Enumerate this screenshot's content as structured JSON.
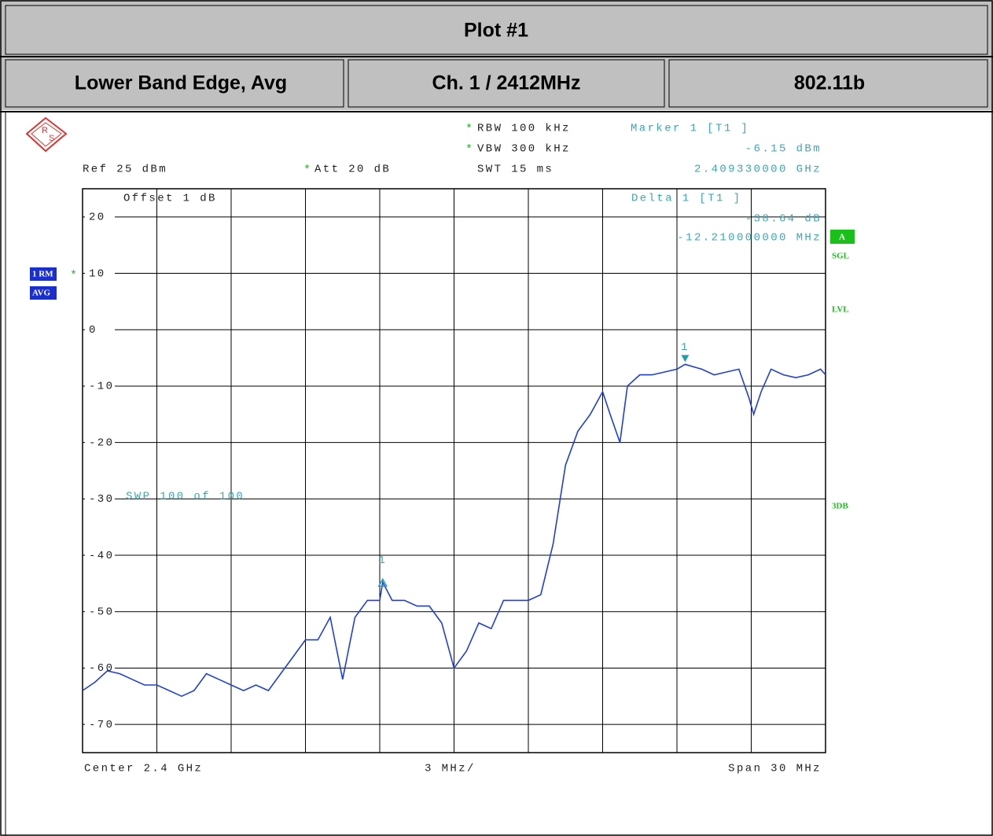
{
  "header": {
    "title": "Plot #1",
    "cells": [
      "Lower Band Edge, Avg",
      "Ch. 1 / 2412MHz",
      "802.11b"
    ]
  },
  "chart_data": {
    "type": "line",
    "logo": [
      "R",
      "S"
    ],
    "star": "*",
    "ref": "Ref 25 dBm",
    "att": "Att 20 dB",
    "rbw": "RBW 100 kHz",
    "vbw": "VBW 300 kHz",
    "swt": "SWT 15 ms",
    "offset": "Offset 1 dB",
    "sweep": "SWP 100 of 100",
    "center": "Center 2.4 GHz",
    "per_division": "3 MHz/",
    "span": "Span 30 MHz",
    "trace_labels": [
      "1 RM",
      "AVG"
    ],
    "side_labels": [
      "A",
      "SGL",
      "LVL",
      "3DB"
    ],
    "marker": {
      "title": "Marker 1 [T1 ]",
      "label": "1",
      "x": 2409.33,
      "value": -6.15,
      "value_label": "-6.15 dBm",
      "x_label": "2.409330000 GHz"
    },
    "delta": {
      "title": "Delta 1 [T1 ]",
      "label": "1",
      "x_offset": -12.21,
      "value_offset": -38.64,
      "value_label": "-38.64 dB",
      "x_label": "-12.210000000 MHz"
    },
    "color": "#1f3fd8",
    "xlim": [
      2385,
      2415
    ],
    "xticks": [
      2385,
      2388,
      2391,
      2394,
      2397,
      2400,
      2403,
      2406,
      2409,
      2412,
      2415
    ],
    "ylim": [
      -75,
      25
    ],
    "yticks": [
      20,
      10,
      0,
      -10,
      -20,
      -30,
      -40,
      -50,
      -60,
      -70
    ],
    "grid": true,
    "x": [
      2385,
      2385.5,
      2386,
      2386.5,
      2387,
      2387.5,
      2388,
      2388.5,
      2389,
      2389.5,
      2390,
      2390.5,
      2391,
      2391.5,
      2392,
      2392.5,
      2393,
      2393.5,
      2394,
      2394.5,
      2395,
      2395.5,
      2396,
      2396.5,
      2397,
      2397.12,
      2397.5,
      2398,
      2398.5,
      2399,
      2399.5,
      2400,
      2400.5,
      2401,
      2401.5,
      2402,
      2402.5,
      2403,
      2403.5,
      2404,
      2404.5,
      2405,
      2405.5,
      2406,
      2406.3,
      2406.7,
      2407,
      2407.5,
      2408,
      2408.5,
      2409,
      2409.33,
      2410,
      2410.5,
      2411,
      2411.5,
      2411.9,
      2412.1,
      2412.4,
      2412.8,
      2413.3,
      2413.8,
      2414.3,
      2414.8,
      2415
    ],
    "values": [
      -64,
      -62.5,
      -60.5,
      -61,
      -62,
      -63,
      -63,
      -64,
      -65,
      -64,
      -61,
      -62,
      -63,
      -64,
      -63,
      -64,
      -61,
      -58,
      -55,
      -55,
      -51,
      -62,
      -51,
      -48,
      -48,
      -44.79,
      -48,
      -48,
      -49,
      -49,
      -52,
      -60,
      -57,
      -52,
      -53,
      -48,
      -48,
      -48,
      -47,
      -38,
      -24,
      -18,
      -15,
      -11,
      -15,
      -20,
      -10,
      -8,
      -8,
      -7.5,
      -7,
      -6.15,
      -7,
      -8,
      -7.5,
      -7,
      -12,
      -15,
      -11,
      -7,
      -8,
      -8.5,
      -8,
      -7,
      -8
    ]
  }
}
